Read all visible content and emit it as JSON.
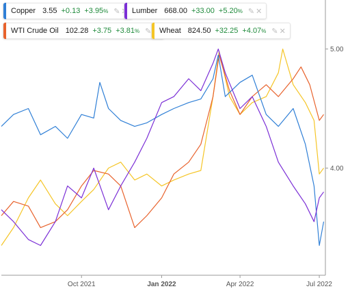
{
  "legend": [
    {
      "name": "Copper",
      "price": "3.55",
      "change": "+0.13",
      "pct": "+3.95",
      "pct_unit": "%",
      "color": "#2f7fd6"
    },
    {
      "name": "Lumber",
      "price": "668.00",
      "change": "+33.00",
      "pct": "+5.20",
      "pct_unit": "%",
      "color": "#7b2fd6"
    },
    {
      "name": "WTI Crude Oil",
      "price": "102.28",
      "change": "+3.75",
      "pct": "+3.81",
      "pct_unit": "%",
      "color": "#e8622c"
    },
    {
      "name": "Wheat",
      "price": "824.50",
      "change": "+32.25",
      "pct": "+4.07",
      "pct_unit": "%",
      "color": "#f5c526"
    }
  ],
  "icons": {
    "edit": "brush-icon",
    "close": "close-icon"
  },
  "chart_data": {
    "type": "line",
    "x_ticks": [
      "Oct 2021",
      "Jan 2022",
      "Apr 2022",
      "Jul 2022"
    ],
    "x_ticks_bold": [
      false,
      true,
      false,
      false
    ],
    "x_range": [
      "2021-07-01",
      "2022-07-08"
    ],
    "y_ticks": [
      "4.00",
      "5.00"
    ],
    "y_range": [
      3.1,
      5.4
    ],
    "grid": false,
    "series": [
      {
        "name": "Copper",
        "color": "#2f7fd6",
        "points": [
          [
            "2021-07-01",
            4.35
          ],
          [
            "2021-07-15",
            4.45
          ],
          [
            "2021-08-01",
            4.5
          ],
          [
            "2021-08-15",
            4.28
          ],
          [
            "2021-09-01",
            4.35
          ],
          [
            "2021-09-15",
            4.25
          ],
          [
            "2021-10-01",
            4.45
          ],
          [
            "2021-10-15",
            4.42
          ],
          [
            "2021-10-22",
            4.72
          ],
          [
            "2021-11-01",
            4.5
          ],
          [
            "2021-11-15",
            4.4
          ],
          [
            "2021-12-01",
            4.35
          ],
          [
            "2021-12-15",
            4.38
          ],
          [
            "2022-01-01",
            4.45
          ],
          [
            "2022-01-15",
            4.5
          ],
          [
            "2022-02-01",
            4.55
          ],
          [
            "2022-02-15",
            4.58
          ],
          [
            "2022-03-01",
            4.75
          ],
          [
            "2022-03-07",
            4.95
          ],
          [
            "2022-03-15",
            4.6
          ],
          [
            "2022-04-01",
            4.72
          ],
          [
            "2022-04-15",
            4.78
          ],
          [
            "2022-05-01",
            4.45
          ],
          [
            "2022-05-15",
            4.35
          ],
          [
            "2022-06-01",
            4.5
          ],
          [
            "2022-06-15",
            4.2
          ],
          [
            "2022-06-25",
            3.85
          ],
          [
            "2022-07-01",
            3.35
          ],
          [
            "2022-07-06",
            3.55
          ]
        ]
      },
      {
        "name": "Lumber",
        "color": "#7b2fd6",
        "points": [
          [
            "2021-07-01",
            3.65
          ],
          [
            "2021-07-15",
            3.55
          ],
          [
            "2021-08-01",
            3.4
          ],
          [
            "2021-08-15",
            3.35
          ],
          [
            "2021-09-01",
            3.55
          ],
          [
            "2021-09-15",
            3.85
          ],
          [
            "2021-10-01",
            3.75
          ],
          [
            "2021-10-15",
            4.0
          ],
          [
            "2021-11-01",
            3.65
          ],
          [
            "2021-11-15",
            3.85
          ],
          [
            "2021-12-01",
            4.05
          ],
          [
            "2021-12-15",
            4.25
          ],
          [
            "2022-01-01",
            4.55
          ],
          [
            "2022-01-15",
            4.6
          ],
          [
            "2022-02-01",
            4.75
          ],
          [
            "2022-02-15",
            4.65
          ],
          [
            "2022-03-01",
            4.88
          ],
          [
            "2022-03-07",
            5.0
          ],
          [
            "2022-03-15",
            4.8
          ],
          [
            "2022-04-01",
            4.5
          ],
          [
            "2022-04-15",
            4.6
          ],
          [
            "2022-05-01",
            4.35
          ],
          [
            "2022-05-15",
            4.05
          ],
          [
            "2022-06-01",
            3.85
          ],
          [
            "2022-06-15",
            3.7
          ],
          [
            "2022-06-25",
            3.55
          ],
          [
            "2022-07-01",
            3.75
          ],
          [
            "2022-07-06",
            3.8
          ]
        ]
      },
      {
        "name": "WTI Crude Oil",
        "color": "#e8622c",
        "points": [
          [
            "2021-07-01",
            3.6
          ],
          [
            "2021-07-15",
            3.72
          ],
          [
            "2021-08-01",
            3.68
          ],
          [
            "2021-08-15",
            3.5
          ],
          [
            "2021-09-01",
            3.55
          ],
          [
            "2021-09-15",
            3.65
          ],
          [
            "2021-10-01",
            3.85
          ],
          [
            "2021-10-15",
            3.98
          ],
          [
            "2021-11-01",
            3.95
          ],
          [
            "2021-11-15",
            3.85
          ],
          [
            "2021-12-01",
            3.5
          ],
          [
            "2021-12-15",
            3.6
          ],
          [
            "2022-01-01",
            3.75
          ],
          [
            "2022-01-15",
            3.95
          ],
          [
            "2022-02-01",
            4.05
          ],
          [
            "2022-02-15",
            4.2
          ],
          [
            "2022-03-01",
            4.6
          ],
          [
            "2022-03-08",
            4.95
          ],
          [
            "2022-03-20",
            4.65
          ],
          [
            "2022-04-01",
            4.45
          ],
          [
            "2022-04-15",
            4.6
          ],
          [
            "2022-05-01",
            4.7
          ],
          [
            "2022-05-15",
            4.6
          ],
          [
            "2022-06-01",
            4.75
          ],
          [
            "2022-06-10",
            4.85
          ],
          [
            "2022-06-20",
            4.7
          ],
          [
            "2022-07-01",
            4.4
          ],
          [
            "2022-07-06",
            4.45
          ]
        ]
      },
      {
        "name": "Wheat",
        "color": "#f5c526",
        "points": [
          [
            "2021-07-01",
            3.35
          ],
          [
            "2021-07-15",
            3.5
          ],
          [
            "2021-08-01",
            3.75
          ],
          [
            "2021-08-15",
            3.9
          ],
          [
            "2021-09-01",
            3.7
          ],
          [
            "2021-09-15",
            3.6
          ],
          [
            "2021-10-01",
            3.72
          ],
          [
            "2021-10-15",
            3.82
          ],
          [
            "2021-11-01",
            4.0
          ],
          [
            "2021-11-15",
            4.05
          ],
          [
            "2021-12-01",
            3.9
          ],
          [
            "2021-12-15",
            3.95
          ],
          [
            "2022-01-01",
            3.85
          ],
          [
            "2022-01-15",
            3.9
          ],
          [
            "2022-02-01",
            3.95
          ],
          [
            "2022-02-15",
            3.98
          ],
          [
            "2022-03-01",
            4.6
          ],
          [
            "2022-03-08",
            4.98
          ],
          [
            "2022-03-20",
            4.6
          ],
          [
            "2022-04-01",
            4.45
          ],
          [
            "2022-04-15",
            4.55
          ],
          [
            "2022-05-01",
            4.6
          ],
          [
            "2022-05-15",
            4.8
          ],
          [
            "2022-05-20",
            5.0
          ],
          [
            "2022-06-01",
            4.7
          ],
          [
            "2022-06-15",
            4.55
          ],
          [
            "2022-06-25",
            4.4
          ],
          [
            "2022-07-01",
            3.95
          ],
          [
            "2022-07-06",
            4.0
          ]
        ]
      }
    ]
  }
}
